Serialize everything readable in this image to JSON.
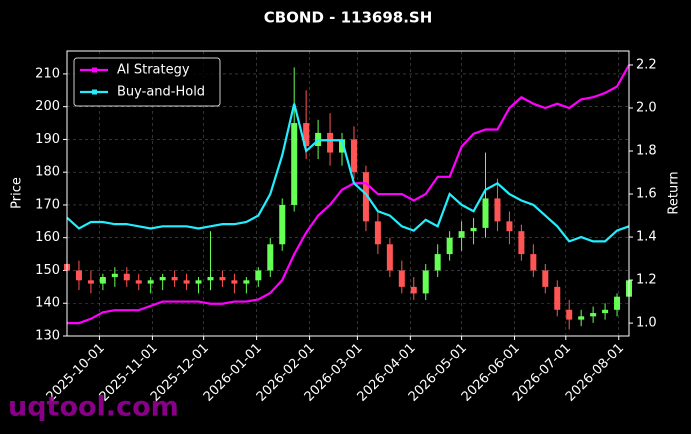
{
  "chart_data": {
    "type": "candlestick",
    "title": "CBOND - 113698.SH",
    "ylabel": "Price",
    "y2label": "Return",
    "watermark": "uqtool.com",
    "x": [
      "2025-09-12",
      "2025-09-19",
      "2025-09-26",
      "2025-10-03",
      "2025-10-10",
      "2025-10-17",
      "2025-10-24",
      "2025-10-31",
      "2025-11-07",
      "2025-11-14",
      "2025-11-21",
      "2025-11-28",
      "2025-12-05",
      "2025-12-12",
      "2025-12-19",
      "2025-12-26",
      "2026-01-02",
      "2026-01-09",
      "2026-01-16",
      "2026-01-23",
      "2026-01-30",
      "2026-02-06",
      "2026-02-13",
      "2026-02-20",
      "2026-02-27",
      "2026-03-06",
      "2026-03-13",
      "2026-03-20",
      "2026-03-27",
      "2026-04-03",
      "2026-04-10",
      "2026-04-17",
      "2026-04-24",
      "2026-05-01",
      "2026-05-08",
      "2026-05-15",
      "2026-05-22",
      "2026-05-29",
      "2026-06-05",
      "2026-06-12",
      "2026-06-19",
      "2026-06-26",
      "2026-07-03",
      "2026-07-10",
      "2026-07-17",
      "2026-07-24",
      "2026-07-31",
      "2026-08-07"
    ],
    "ohlc": {
      "open": [
        152,
        150,
        147,
        146,
        148,
        149,
        147,
        146,
        147,
        148,
        147,
        146,
        147,
        148,
        147,
        146,
        147,
        150,
        158,
        170,
        195,
        188,
        192,
        186,
        190,
        180,
        165,
        158,
        150,
        145,
        143,
        150,
        155,
        160,
        162,
        163,
        172,
        165,
        162,
        155,
        150,
        145,
        138,
        135,
        136,
        137,
        138,
        142
      ],
      "high": [
        175,
        153,
        150,
        149,
        151,
        151,
        149,
        148,
        149,
        150,
        149,
        148,
        162,
        150,
        149,
        148,
        151,
        160,
        172,
        212,
        205,
        196,
        198,
        192,
        194,
        182,
        168,
        160,
        153,
        148,
        152,
        158,
        162,
        165,
        166,
        186,
        178,
        168,
        164,
        158,
        152,
        147,
        141,
        138,
        139,
        140,
        143,
        149
      ],
      "low": [
        145,
        144,
        143,
        144,
        145,
        145,
        144,
        143,
        144,
        145,
        144,
        143,
        144,
        145,
        143,
        143,
        145,
        148,
        156,
        168,
        184,
        184,
        182,
        182,
        178,
        162,
        155,
        148,
        143,
        141,
        141,
        148,
        153,
        156,
        158,
        160,
        162,
        158,
        153,
        148,
        143,
        136,
        132,
        133,
        134,
        135,
        136,
        140
      ],
      "close": [
        150,
        147,
        146,
        148,
        149,
        147,
        146,
        147,
        148,
        147,
        146,
        147,
        148,
        147,
        146,
        147,
        150,
        158,
        170,
        195,
        188,
        192,
        186,
        190,
        180,
        165,
        158,
        150,
        145,
        143,
        150,
        155,
        160,
        162,
        163,
        172,
        165,
        162,
        155,
        150,
        145,
        138,
        135,
        136,
        137,
        138,
        142,
        147
      ]
    },
    "up_color": "#66ff55",
    "down_color": "#ff5555",
    "series": [
      {
        "name": "AI Strategy",
        "color": "#ff00ff",
        "axis": "y2",
        "values": [
          1.0,
          1.0,
          1.02,
          1.05,
          1.06,
          1.06,
          1.06,
          1.08,
          1.1,
          1.1,
          1.1,
          1.1,
          1.09,
          1.09,
          1.1,
          1.1,
          1.11,
          1.14,
          1.2,
          1.32,
          1.42,
          1.5,
          1.55,
          1.62,
          1.65,
          1.65,
          1.6,
          1.6,
          1.6,
          1.57,
          1.6,
          1.68,
          1.68,
          1.82,
          1.88,
          1.9,
          1.9,
          2.0,
          2.05,
          2.02,
          2.0,
          2.02,
          2.0,
          2.04,
          2.05,
          2.07,
          2.1,
          2.2
        ]
      },
      {
        "name": "Buy-and-Hold",
        "color": "#22eeff",
        "axis": "y2",
        "values": [
          1.49,
          1.44,
          1.47,
          1.47,
          1.46,
          1.46,
          1.45,
          1.44,
          1.45,
          1.45,
          1.45,
          1.44,
          1.45,
          1.46,
          1.46,
          1.47,
          1.5,
          1.6,
          1.78,
          2.02,
          1.8,
          1.85,
          1.85,
          1.85,
          1.65,
          1.6,
          1.52,
          1.5,
          1.45,
          1.43,
          1.48,
          1.45,
          1.6,
          1.55,
          1.52,
          1.62,
          1.65,
          1.6,
          1.57,
          1.55,
          1.5,
          1.45,
          1.38,
          1.4,
          1.38,
          1.38,
          1.43,
          1.45
        ]
      }
    ],
    "xlim": [
      "2025-09-12",
      "2026-08-07"
    ],
    "xticks": [
      "2025-10-01",
      "2025-11-01",
      "2025-12-01",
      "2026-01-01",
      "2026-02-01",
      "2026-03-01",
      "2026-04-01",
      "2026-05-01",
      "2026-06-01",
      "2026-07-01",
      "2026-08-01"
    ],
    "ylim": [
      130,
      217
    ],
    "yticks": [
      130,
      140,
      150,
      160,
      170,
      180,
      190,
      200,
      210
    ],
    "y2lim": [
      0.94,
      2.265
    ],
    "y2ticks": [
      {
        "value": 1,
        "label": "1.0"
      },
      1.2,
      1.4,
      1.6,
      1.8,
      {
        "value": 2,
        "label": "2.0"
      },
      2.2
    ],
    "grid": true,
    "legend": "upper left"
  }
}
